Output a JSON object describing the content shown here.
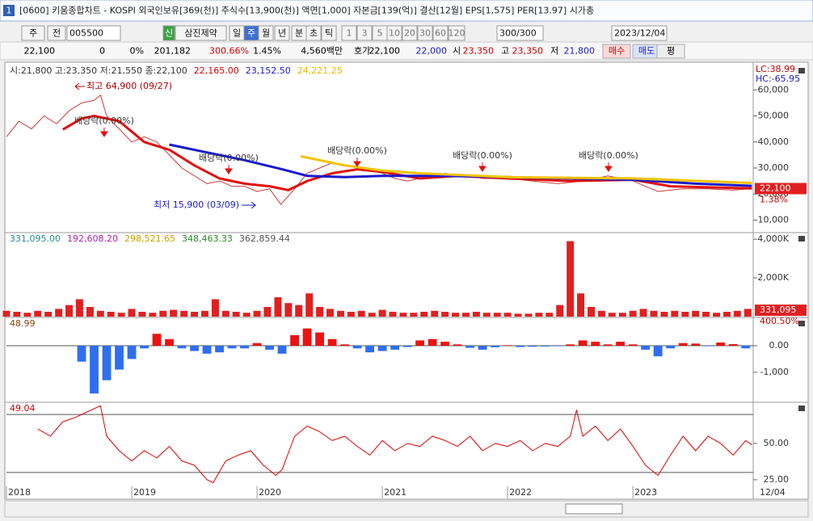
{
  "window": {
    "icon": "1",
    "title": "[0600] 키움종합차트 - KOSPI 외국인보유[369(천)] 주식수[13,900(천)] 액면[1,000] 자본금[139(억)] 결산[12월] EPS[1,575] PER[13.97] 시가총",
    "x_end_label": "12/04"
  },
  "toolbar": [
    "주",
    "전",
    "005500",
    "신",
    "삼진제약",
    "일",
    "주",
    "월",
    "년",
    "분",
    "초",
    "틱",
    "1",
    "3",
    "5",
    "10",
    "20",
    "30",
    "60",
    "120",
    "300/300",
    "2023/12/04"
  ],
  "info_bar": [
    "22,100",
    "0",
    "0%",
    "201,182",
    "300.66%",
    "1.45%",
    "4,560백만",
    "호가",
    "22,100",
    "22,000",
    "시",
    "23,350",
    "고",
    "23,350",
    "저",
    "21,800",
    "매수",
    "매도",
    "평"
  ],
  "chart_data": [
    {
      "type": "line",
      "legend": [
        {
          "text": "시:21,800 고:23,350 저:21,550 종:22,100",
          "color": "#333333"
        },
        {
          "text": "22,165.00",
          "color": "#dd0000"
        },
        {
          "text": "23,152.50",
          "color": "#1a1acc"
        },
        {
          "text": "24,221.25",
          "color": "#e6b800"
        }
      ],
      "series": [
        {
          "color": "#c83c3c",
          "width": 1,
          "x": [
            2018.0,
            2018.1,
            2018.2,
            2018.3,
            2018.4,
            2018.5,
            2018.6,
            2018.7,
            2018.75,
            2018.8,
            2018.9,
            2019.0,
            2019.1,
            2019.2,
            2019.3,
            2019.4,
            2019.5,
            2019.6,
            2019.7,
            2019.8,
            2019.9,
            2020.0,
            2020.1,
            2020.19,
            2020.3,
            2020.4,
            2020.5,
            2020.6,
            2020.7,
            2020.8,
            2020.9,
            2021.0,
            2021.1,
            2021.2,
            2021.3,
            2021.4,
            2021.5,
            2021.6,
            2021.7,
            2021.8,
            2021.9,
            2022.0,
            2022.2,
            2022.4,
            2022.6,
            2022.8,
            2023.0,
            2023.1,
            2023.2,
            2023.4,
            2023.6,
            2023.8,
            2023.95
          ],
          "values": [
            42000,
            48000,
            45000,
            50000,
            47000,
            52000,
            55000,
            56000,
            58000,
            50000,
            45000,
            40000,
            42000,
            40000,
            35000,
            30000,
            27000,
            24000,
            25000,
            23000,
            23000,
            21000,
            22000,
            16000,
            22000,
            28000,
            30000,
            32000,
            31000,
            30000,
            29000,
            28000,
            26000,
            25000,
            26000,
            27000,
            28000,
            27000,
            27000,
            26000,
            26000,
            26000,
            25000,
            24000,
            25000,
            27000,
            25000,
            23000,
            21000,
            22000,
            22000,
            21500,
            22100
          ]
        },
        {
          "color": "#e01010",
          "width": 3,
          "x": [
            2018.45,
            2018.6,
            2018.7,
            2018.9,
            2019.1,
            2019.3,
            2019.5,
            2019.7,
            2019.9,
            2020.1,
            2020.25,
            2020.4,
            2020.6,
            2020.8,
            2021.0,
            2021.3,
            2021.6,
            2022.0,
            2022.5,
            2023.0,
            2023.3,
            2023.95
          ],
          "values": [
            44800,
            49000,
            50000,
            48000,
            40000,
            37000,
            31000,
            26000,
            24000,
            23000,
            21500,
            25000,
            28000,
            29500,
            28500,
            26000,
            27000,
            26000,
            25000,
            25500,
            23000,
            22165
          ]
        },
        {
          "color": "#1a1acc",
          "width": 3,
          "x": [
            2019.3,
            2019.6,
            2019.9,
            2020.2,
            2020.4,
            2020.7,
            2021.0,
            2021.5,
            2022.0,
            2022.5,
            2023.0,
            2023.5,
            2023.95
          ],
          "values": [
            39000,
            36000,
            33000,
            29500,
            27000,
            26500,
            27000,
            27000,
            26500,
            26000,
            25500,
            24000,
            23150
          ]
        },
        {
          "color": "#f2c200",
          "width": 3,
          "x": [
            2020.35,
            2020.7,
            2021.0,
            2021.3,
            2022.0,
            2023.0,
            2023.95
          ],
          "values": [
            34500,
            31000,
            29000,
            28000,
            26500,
            26000,
            24220
          ]
        }
      ],
      "annotations": [
        "최고 64,900 (09/27)",
        "최저 15,900 (03/09)",
        "배당락(0.00%)",
        "배당락(0.00%)",
        "배당락(0.00%)",
        "배당락(0.00%)",
        "배당락(0.00%)"
      ],
      "right_labels": [
        "LC:38.99",
        "HC:-65.95"
      ],
      "last": {
        "value": 22100,
        "label": "22,100"
      },
      "last_change": "1.38%",
      "ylim": [
        5500,
        69700
      ],
      "yticks": [
        {
          "value": 10000,
          "label": "10,000"
        },
        {
          "value": 20000,
          "label": "20,000"
        },
        {
          "value": 30000,
          "label": "30,000"
        },
        {
          "value": 40000,
          "label": "40,000"
        },
        {
          "value": 50000,
          "label": "50,000"
        },
        {
          "value": 60000,
          "label": "60,000"
        }
      ]
    },
    {
      "type": "bar",
      "legend": [
        {
          "text": "331,095.00",
          "color": "#2a8a8a"
        },
        {
          "text": "192,608.20",
          "color": "#b020b0"
        },
        {
          "text": "298,521.65",
          "color": "#c8a000"
        },
        {
          "text": "348,463.33",
          "color": "#2a8a2a"
        },
        {
          "text": "362,859.44",
          "color": "#555555"
        }
      ],
      "series": [
        {
          "color": "#e02020",
          "x": [
            2018.0,
            2018.083,
            2018.167,
            2018.25,
            2018.333,
            2018.417,
            2018.5,
            2018.583,
            2018.667,
            2018.75,
            2018.833,
            2018.917,
            2019.0,
            2019.083,
            2019.167,
            2019.25,
            2019.333,
            2019.417,
            2019.5,
            2019.583,
            2019.667,
            2019.75,
            2019.833,
            2019.917,
            2020.0,
            2020.083,
            2020.167,
            2020.25,
            2020.333,
            2020.417,
            2020.5,
            2020.583,
            2020.667,
            2020.75,
            2020.833,
            2020.917,
            2021.0,
            2021.083,
            2021.167,
            2021.25,
            2021.333,
            2021.417,
            2021.5,
            2021.583,
            2021.667,
            2021.75,
            2021.833,
            2021.917,
            2022.0,
            2022.083,
            2022.167,
            2022.25,
            2022.333,
            2022.417,
            2022.5,
            2022.583,
            2022.667,
            2022.75,
            2022.833,
            2022.917,
            2023.0,
            2023.083,
            2023.167,
            2023.25,
            2023.333,
            2023.417,
            2023.5,
            2023.583,
            2023.667,
            2023.75,
            2023.833,
            2023.917
          ],
          "values": [
            300000,
            250000,
            200000,
            300000,
            250000,
            400000,
            600000,
            900000,
            500000,
            300000,
            250000,
            200000,
            400000,
            250000,
            200000,
            300000,
            350000,
            300000,
            250000,
            300000,
            900000,
            300000,
            250000,
            200000,
            300000,
            500000,
            1000000,
            700000,
            600000,
            1200000,
            500000,
            400000,
            300000,
            250000,
            300000,
            200000,
            350000,
            250000,
            200000,
            200000,
            250000,
            300000,
            250000,
            200000,
            200000,
            250000,
            200000,
            200000,
            200000,
            150000,
            150000,
            200000,
            200000,
            600000,
            3900000,
            1200000,
            500000,
            300000,
            200000,
            200000,
            300000,
            400000,
            300000,
            250000,
            300000,
            250000,
            300000,
            250000,
            200000,
            250000,
            300000,
            400000
          ]
        }
      ],
      "last": {
        "value": 331095,
        "label": "331,095"
      },
      "last_change": "400.50%",
      "ylim": [
        0,
        4340000
      ],
      "yticks": [
        {
          "value": 2000000,
          "label": "2,000K"
        },
        {
          "value": 4000000,
          "label": "4,000K"
        }
      ]
    },
    {
      "type": "bar",
      "legend": [
        {
          "text": "48.99",
          "color": "#8b4513"
        }
      ],
      "series": [
        {
          "positive_color": "#ee1111",
          "negative_color": "#2f6fef",
          "x": [
            2018.6,
            2018.7,
            2018.8,
            2018.9,
            2019.0,
            2019.1,
            2019.2,
            2019.3,
            2019.4,
            2019.5,
            2019.6,
            2019.7,
            2019.8,
            2019.9,
            2020.0,
            2020.1,
            2020.2,
            2020.3,
            2020.4,
            2020.5,
            2020.6,
            2020.7,
            2020.8,
            2020.9,
            2021.0,
            2021.1,
            2021.2,
            2021.3,
            2021.4,
            2021.5,
            2021.6,
            2021.7,
            2021.8,
            2021.9,
            2022.0,
            2022.1,
            2022.2,
            2022.3,
            2022.4,
            2022.5,
            2022.6,
            2022.7,
            2022.8,
            2022.9,
            2023.0,
            2023.1,
            2023.2,
            2023.3,
            2023.4,
            2023.5,
            2023.6,
            2023.7,
            2023.8,
            2023.9
          ],
          "values": [
            -600,
            -1800,
            -1300,
            -900,
            -500,
            -100,
            450,
            250,
            -100,
            -200,
            -300,
            -250,
            -100,
            -100,
            100,
            -150,
            -300,
            400,
            650,
            500,
            250,
            50,
            -100,
            -250,
            -200,
            -150,
            -50,
            200,
            250,
            150,
            50,
            -80,
            -150,
            -60,
            20,
            -50,
            -40,
            -30,
            -20,
            50,
            200,
            150,
            50,
            150,
            50,
            -150,
            -400,
            -100,
            100,
            80,
            -20,
            120,
            60,
            -100
          ]
        }
      ],
      "ylim": [
        -2100,
        1065
      ],
      "yticks": [
        {
          "value": 0,
          "label": "0.00"
        },
        {
          "value": -1000,
          "label": "-1,000"
        }
      ]
    },
    {
      "type": "line",
      "legend": [
        {
          "text": "49.04",
          "color": "#cc0000"
        }
      ],
      "series": [
        {
          "color": "#dd0000",
          "width": 1,
          "x": [
            2018.25,
            2018.35,
            2018.45,
            2018.55,
            2018.65,
            2018.75,
            2018.8,
            2018.9,
            2019.0,
            2019.1,
            2019.2,
            2019.3,
            2019.4,
            2019.5,
            2019.6,
            2019.65,
            2019.75,
            2019.85,
            2019.95,
            2020.05,
            2020.15,
            2020.2,
            2020.3,
            2020.4,
            2020.5,
            2020.6,
            2020.7,
            2020.8,
            2020.9,
            2021.0,
            2021.1,
            2021.2,
            2021.3,
            2021.4,
            2021.5,
            2021.6,
            2021.7,
            2021.8,
            2021.9,
            2022.0,
            2022.1,
            2022.2,
            2022.3,
            2022.4,
            2022.5,
            2022.55,
            2022.6,
            2022.7,
            2022.8,
            2022.9,
            2023.0,
            2023.1,
            2023.2,
            2023.3,
            2023.4,
            2023.5,
            2023.6,
            2023.7,
            2023.8,
            2023.9,
            2023.95
          ],
          "values": [
            60,
            55,
            65,
            68,
            72,
            76,
            55,
            45,
            38,
            45,
            40,
            48,
            38,
            35,
            25,
            23,
            38,
            42,
            45,
            35,
            28,
            32,
            55,
            62,
            58,
            52,
            55,
            48,
            42,
            52,
            45,
            50,
            48,
            55,
            52,
            48,
            55,
            45,
            50,
            48,
            52,
            45,
            50,
            48,
            55,
            73,
            55,
            62,
            52,
            60,
            48,
            35,
            28,
            42,
            55,
            45,
            55,
            50,
            42,
            52,
            49
          ]
        }
      ],
      "levels": [
        70,
        30
      ],
      "ylim": [
        20.5,
        78.4
      ],
      "yticks": [
        {
          "value": 50,
          "label": "50.00"
        },
        {
          "value": 25,
          "label": "25.00"
        }
      ],
      "xlim": [
        2018,
        2023.96
      ],
      "xticks": [
        2018,
        2019,
        2020,
        2021,
        2022,
        2023
      ]
    }
  ]
}
